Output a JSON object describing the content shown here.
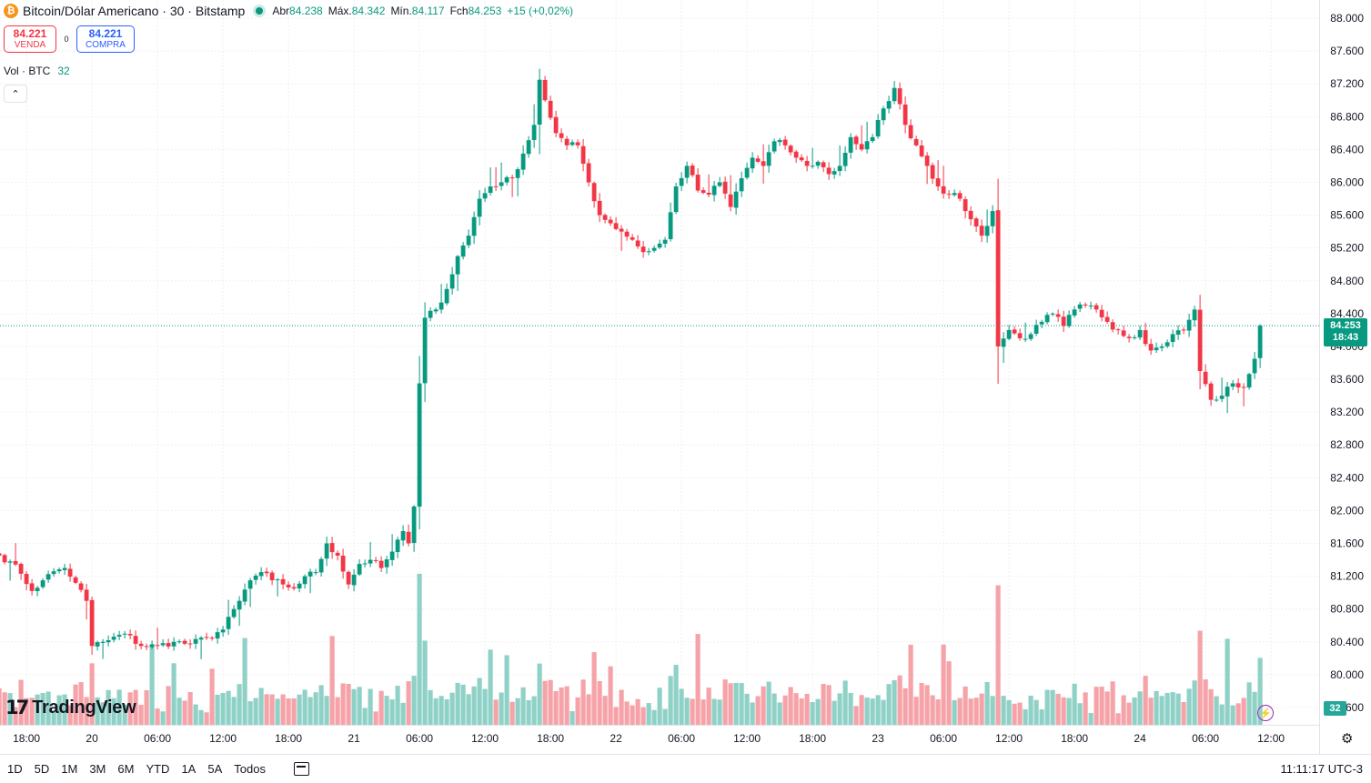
{
  "header": {
    "symbol_icon": "₿",
    "title": "Bitcoin/Dólar Americano · 30 · Bitstamp",
    "open_label": "Abr",
    "open": "84.238",
    "high_label": "Máx.",
    "high": "84.342",
    "low_label": "Mín.",
    "low": "84.117",
    "close_label": "Fch",
    "close": "84.253",
    "change": "+15 (+0,02%)"
  },
  "trade": {
    "sell_price": "84.221",
    "sell_label": "VENDA",
    "spread": "0",
    "buy_price": "84.221",
    "buy_label": "COMPRA"
  },
  "volume_legend": {
    "label": "Vol · BTC",
    "value": "32"
  },
  "collapse_icon": "⌃",
  "logo": {
    "mark": "17",
    "text": "TradingView"
  },
  "price_tag": {
    "price": "84.253",
    "countdown": "18:43"
  },
  "volume_tag": "32",
  "flash_icon": "⚡",
  "settings_icon": "⚙",
  "bottom": {
    "ranges": [
      "1D",
      "5D",
      "1M",
      "3M",
      "6M",
      "YTD",
      "1A",
      "5A",
      "Todos"
    ],
    "clock": "11:11:17 UTC-3"
  },
  "colors": {
    "up": "#089981",
    "down": "#f23645",
    "vol_up": "#8fd1c6",
    "vol_down": "#f5a3a8"
  },
  "chart_data": {
    "type": "candlestick",
    "y_tick_labels": [
      "88.000",
      "87.600",
      "87.200",
      "86.800",
      "86.400",
      "86.000",
      "85.600",
      "85.200",
      "84.800",
      "84.400",
      "84.000",
      "83.600",
      "83.200",
      "82.800",
      "82.400",
      "82.000",
      "81.600",
      "81.200",
      "80.800",
      "80.400",
      "80.000",
      "79.600"
    ],
    "y_ticks": [
      88000,
      87600,
      87200,
      86800,
      86400,
      86000,
      85600,
      85200,
      84800,
      84400,
      84000,
      83600,
      83200,
      82800,
      82400,
      82000,
      81600,
      81200,
      80800,
      80400,
      80000,
      79600
    ],
    "ylim": [
      79600,
      88000
    ],
    "x_tick_labels": [
      "18:00",
      "20",
      "06:00",
      "12:00",
      "18:00",
      "21",
      "06:00",
      "12:00",
      "18:00",
      "22",
      "06:00",
      "12:00",
      "18:00",
      "23",
      "06:00",
      "12:00",
      "18:00",
      "24",
      "06:00",
      "12:00"
    ],
    "x_tick_bar_index": [
      5,
      17,
      29,
      41,
      53,
      65,
      77,
      89,
      101,
      113,
      125,
      137,
      149,
      161,
      173,
      185,
      197,
      209,
      221,
      233
    ],
    "bar_interval": "30",
    "anchors": [
      [
        0,
        81450
      ],
      [
        2,
        81380
      ],
      [
        4,
        81230
      ],
      [
        6,
        81020
      ],
      [
        8,
        81150
      ],
      [
        10,
        81260
      ],
      [
        12,
        81300
      ],
      [
        14,
        81120
      ],
      [
        16,
        80900
      ],
      [
        17,
        80350
      ],
      [
        20,
        80420
      ],
      [
        23,
        80500
      ],
      [
        26,
        80350
      ],
      [
        29,
        80350
      ],
      [
        32,
        80400
      ],
      [
        35,
        80370
      ],
      [
        38,
        80450
      ],
      [
        41,
        80550
      ],
      [
        44,
        80900
      ],
      [
        46,
        81150
      ],
      [
        48,
        81250
      ],
      [
        50,
        81150
      ],
      [
        52,
        81100
      ],
      [
        54,
        81050
      ],
      [
        56,
        81200
      ],
      [
        58,
        81250
      ],
      [
        60,
        81600
      ],
      [
        62,
        81450
      ],
      [
        64,
        81100
      ],
      [
        66,
        81350
      ],
      [
        68,
        81400
      ],
      [
        70,
        81300
      ],
      [
        72,
        81500
      ],
      [
        74,
        81750
      ],
      [
        75,
        81600
      ],
      [
        76,
        82050
      ],
      [
        77,
        83550
      ],
      [
        78,
        84350
      ],
      [
        80,
        84450
      ],
      [
        82,
        84700
      ],
      [
        84,
        85100
      ],
      [
        86,
        85350
      ],
      [
        88,
        85800
      ],
      [
        90,
        85950
      ],
      [
        92,
        86000
      ],
      [
        94,
        86050
      ],
      [
        96,
        86350
      ],
      [
        98,
        86700
      ],
      [
        99,
        87250
      ],
      [
        100,
        87000
      ],
      [
        102,
        86600
      ],
      [
        104,
        86450
      ],
      [
        106,
        86450
      ],
      [
        108,
        86000
      ],
      [
        110,
        85600
      ],
      [
        112,
        85500
      ],
      [
        114,
        85400
      ],
      [
        116,
        85300
      ],
      [
        118,
        85150
      ],
      [
        120,
        85200
      ],
      [
        122,
        85300
      ],
      [
        124,
        85950
      ],
      [
        126,
        86200
      ],
      [
        128,
        85900
      ],
      [
        130,
        85850
      ],
      [
        132,
        86000
      ],
      [
        134,
        85700
      ],
      [
        136,
        86050
      ],
      [
        138,
        86300
      ],
      [
        140,
        86200
      ],
      [
        142,
        86500
      ],
      [
        144,
        86450
      ],
      [
        146,
        86300
      ],
      [
        148,
        86200
      ],
      [
        150,
        86250
      ],
      [
        152,
        86100
      ],
      [
        154,
        86200
      ],
      [
        156,
        86550
      ],
      [
        158,
        86400
      ],
      [
        160,
        86550
      ],
      [
        162,
        86900
      ],
      [
        164,
        87150
      ],
      [
        166,
        86700
      ],
      [
        168,
        86450
      ],
      [
        170,
        86200
      ],
      [
        172,
        85950
      ],
      [
        174,
        85850
      ],
      [
        176,
        85800
      ],
      [
        178,
        85550
      ],
      [
        180,
        85350
      ],
      [
        182,
        85650
      ],
      [
        183,
        84000
      ],
      [
        185,
        84200
      ],
      [
        187,
        84100
      ],
      [
        189,
        84150
      ],
      [
        191,
        84300
      ],
      [
        193,
        84400
      ],
      [
        195,
        84250
      ],
      [
        197,
        84450
      ],
      [
        199,
        84500
      ],
      [
        201,
        84450
      ],
      [
        203,
        84300
      ],
      [
        205,
        84200
      ],
      [
        207,
        84100
      ],
      [
        209,
        84200
      ],
      [
        211,
        83950
      ],
      [
        213,
        84000
      ],
      [
        215,
        84150
      ],
      [
        217,
        84200
      ],
      [
        219,
        84450
      ],
      [
        220,
        83700
      ],
      [
        222,
        83350
      ],
      [
        224,
        83400
      ],
      [
        226,
        83550
      ],
      [
        228,
        83500
      ],
      [
        230,
        83850
      ],
      [
        231,
        84253
      ]
    ],
    "volume_ylim": [
      0,
      2.5
    ]
  }
}
